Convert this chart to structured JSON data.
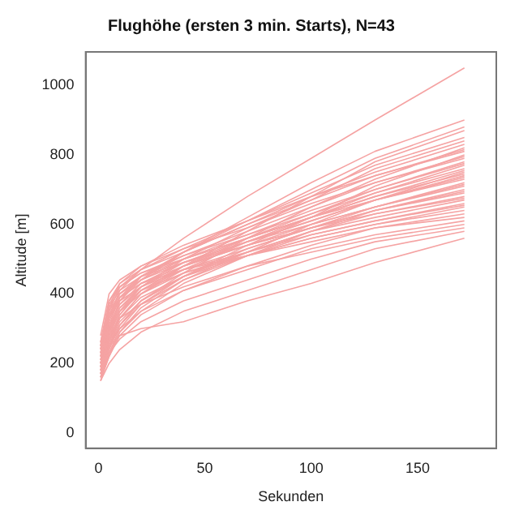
{
  "chart_data": {
    "type": "line",
    "title": "Flughöhe (ersten 3 min. Starts), N=43",
    "xlabel": "Sekunden",
    "ylabel": "Altitude [m]",
    "color": "#f5a3a3",
    "legend": false,
    "grid": false,
    "xlim": [
      -6,
      187
    ],
    "xticks": [
      0,
      50,
      100,
      150
    ],
    "ylim": [
      -44,
      1096
    ],
    "yticks": [
      0,
      200,
      400,
      600,
      800,
      1000
    ],
    "x": [
      1,
      5,
      10,
      20,
      40,
      70,
      100,
      130,
      172
    ],
    "series": [
      {
        "values": [
          220,
          330,
          410,
          470,
          560,
          680,
          790,
          900,
          1050
        ]
      },
      {
        "values": [
          250,
          340,
          400,
          450,
          520,
          620,
          720,
          810,
          900
        ]
      },
      {
        "values": [
          180,
          290,
          380,
          440,
          520,
          610,
          700,
          790,
          880
        ]
      },
      {
        "values": [
          200,
          260,
          330,
          400,
          480,
          580,
          680,
          780,
          870
        ]
      },
      {
        "values": [
          230,
          350,
          420,
          470,
          530,
          610,
          690,
          770,
          850
        ]
      },
      {
        "values": [
          190,
          280,
          350,
          420,
          500,
          590,
          670,
          760,
          840
        ]
      },
      {
        "values": [
          260,
          380,
          430,
          470,
          520,
          600,
          680,
          750,
          830
        ]
      },
      {
        "values": [
          170,
          240,
          310,
          380,
          460,
          560,
          650,
          730,
          820
        ]
      },
      {
        "values": [
          210,
          300,
          380,
          450,
          520,
          600,
          670,
          740,
          815
        ]
      },
      {
        "values": [
          240,
          360,
          430,
          480,
          540,
          610,
          680,
          740,
          810
        ]
      },
      {
        "values": [
          160,
          230,
          300,
          370,
          450,
          540,
          620,
          710,
          800
        ]
      },
      {
        "values": [
          200,
          310,
          390,
          450,
          510,
          580,
          650,
          720,
          795
        ]
      },
      {
        "values": [
          280,
          400,
          440,
          480,
          530,
          590,
          660,
          720,
          790
        ]
      },
      {
        "values": [
          190,
          270,
          340,
          410,
          480,
          560,
          630,
          700,
          780
        ]
      },
      {
        "values": [
          220,
          320,
          390,
          440,
          500,
          570,
          640,
          700,
          775
        ]
      },
      {
        "values": [
          170,
          250,
          330,
          400,
          470,
          550,
          620,
          690,
          770
        ]
      },
      {
        "values": [
          250,
          370,
          420,
          460,
          510,
          570,
          630,
          690,
          760
        ]
      },
      {
        "values": [
          200,
          290,
          360,
          420,
          490,
          560,
          620,
          680,
          755
        ]
      },
      {
        "values": [
          150,
          220,
          290,
          360,
          440,
          520,
          600,
          670,
          750
        ]
      },
      {
        "values": [
          230,
          340,
          400,
          450,
          500,
          560,
          620,
          680,
          745
        ]
      },
      {
        "values": [
          180,
          260,
          340,
          410,
          480,
          550,
          610,
          670,
          740
        ]
      },
      {
        "values": [
          210,
          300,
          370,
          430,
          490,
          550,
          610,
          670,
          735
        ]
      },
      {
        "values": [
          260,
          380,
          420,
          460,
          500,
          560,
          620,
          670,
          730
        ]
      },
      {
        "values": [
          170,
          240,
          310,
          380,
          450,
          530,
          590,
          650,
          720
        ]
      },
      {
        "values": [
          200,
          310,
          370,
          420,
          480,
          540,
          600,
          650,
          715
        ]
      },
      {
        "values": [
          240,
          350,
          400,
          440,
          490,
          550,
          600,
          650,
          710
        ]
      },
      {
        "values": [
          160,
          230,
          290,
          350,
          430,
          510,
          580,
          640,
          700
        ]
      },
      {
        "values": [
          190,
          280,
          350,
          410,
          470,
          530,
          590,
          640,
          695
        ]
      },
      {
        "values": [
          220,
          330,
          390,
          430,
          480,
          540,
          590,
          640,
          690
        ]
      },
      {
        "values": [
          180,
          250,
          320,
          380,
          450,
          520,
          580,
          630,
          680
        ]
      },
      {
        "values": [
          250,
          360,
          410,
          450,
          490,
          540,
          590,
          630,
          675
        ]
      },
      {
        "values": [
          200,
          290,
          350,
          400,
          460,
          520,
          580,
          620,
          670
        ]
      },
      {
        "values": [
          170,
          250,
          310,
          370,
          440,
          510,
          570,
          610,
          660
        ]
      },
      {
        "values": [
          230,
          330,
          380,
          420,
          470,
          520,
          570,
          610,
          655
        ]
      },
      {
        "values": [
          190,
          270,
          330,
          390,
          450,
          510,
          560,
          600,
          650
        ]
      },
      {
        "values": [
          210,
          300,
          360,
          410,
          460,
          510,
          560,
          600,
          640
        ]
      },
      {
        "values": [
          160,
          220,
          280,
          340,
          410,
          480,
          540,
          590,
          630
        ]
      },
      {
        "values": [
          240,
          340,
          390,
          430,
          470,
          510,
          550,
          590,
          620
        ]
      },
      {
        "values": [
          180,
          250,
          300,
          350,
          410,
          470,
          530,
          570,
          610
        ]
      },
      {
        "values": [
          200,
          280,
          330,
          370,
          420,
          480,
          520,
          560,
          600
        ]
      },
      {
        "values": [
          170,
          230,
          270,
          320,
          380,
          440,
          500,
          550,
          590
        ]
      },
      {
        "values": [
          150,
          200,
          240,
          290,
          350,
          410,
          470,
          530,
          580
        ]
      },
      {
        "values": [
          190,
          250,
          280,
          300,
          320,
          380,
          430,
          490,
          560
        ]
      }
    ]
  }
}
